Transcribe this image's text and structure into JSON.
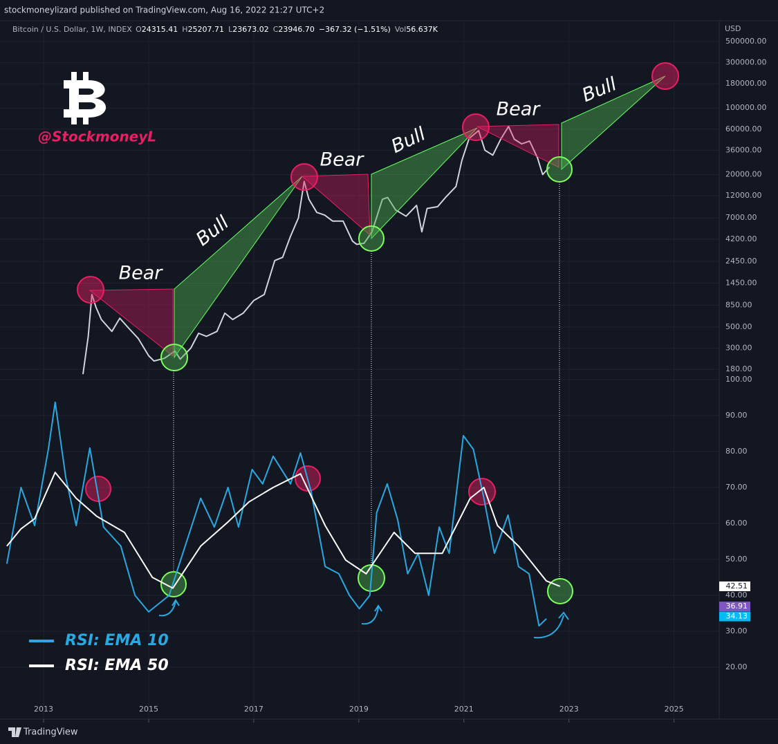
{
  "header": {
    "published": "stockmoneylizard published on TradingView.com, Aug 16, 2022 21:27 UTC+2",
    "symbol": "Bitcoin / U.S. Dollar, 1W, INDEX",
    "ohlc": [
      {
        "key": "O",
        "value": "24315.41"
      },
      {
        "key": "H",
        "value": "25207.71"
      },
      {
        "key": "L",
        "value": "23673.02"
      },
      {
        "key": "C",
        "value": "23946.70"
      }
    ],
    "change": "−367.32 (−1.51%)",
    "volume": {
      "key": "Vol",
      "value": "56.637K"
    },
    "currency": "USD"
  },
  "watermark": "@StockmoneyL",
  "annotations": [
    "Bear",
    "Bull",
    "Bear",
    "Bull",
    "Bear",
    "Bull"
  ],
  "footer": "TradingView",
  "chart_data": [
    {
      "type": "line",
      "log_scale": true,
      "grid": true,
      "xlim": [
        2012.17,
        2025.86
      ],
      "ylim": [
        150,
        826000
      ],
      "yticks": [
        {
          "value": 500000,
          "label": "500000.00"
        },
        {
          "value": 300000,
          "label": "300000.00"
        },
        {
          "value": 180000,
          "label": "180000.00"
        },
        {
          "value": 100000,
          "label": "100000.00"
        },
        {
          "value": 60000,
          "label": "60000.00"
        },
        {
          "value": 36000,
          "label": "36000.00"
        },
        {
          "value": 20000,
          "label": "20000.00"
        },
        {
          "value": 12000,
          "label": "12000.00"
        },
        {
          "value": 7000,
          "label": "7000.00"
        },
        {
          "value": 4200,
          "label": "4200.00"
        },
        {
          "value": 2450,
          "label": "2450.00"
        },
        {
          "value": 1450,
          "label": "1450.00"
        },
        {
          "value": 850,
          "label": "850.00"
        },
        {
          "value": 500,
          "label": "500.00"
        },
        {
          "value": 300,
          "label": "300.00"
        },
        {
          "value": 180,
          "label": "180.00"
        }
      ],
      "series": [
        {
          "color": "#d1d4dc",
          "x": [
            2013.75,
            2013.85,
            2013.92,
            2014.0,
            2014.1,
            2014.3,
            2014.45,
            2014.6,
            2014.8,
            2015.0,
            2015.1,
            2015.3,
            2015.5,
            2015.6,
            2015.8,
            2015.95,
            2016.1,
            2016.3,
            2016.45,
            2016.6,
            2016.8,
            2017.0,
            2017.2,
            2017.4,
            2017.55,
            2017.7,
            2017.85,
            2017.96,
            2018.05,
            2018.2,
            2018.35,
            2018.5,
            2018.7,
            2018.88,
            2018.96,
            2019.1,
            2019.25,
            2019.45,
            2019.55,
            2019.7,
            2019.9,
            2020.1,
            2020.2,
            2020.3,
            2020.5,
            2020.65,
            2020.85,
            2020.96,
            2021.1,
            2021.28,
            2021.4,
            2021.55,
            2021.7,
            2021.85,
            2021.96,
            2022.1,
            2022.25,
            2022.4,
            2022.5,
            2022.63
          ],
          "values": [
            160,
            400,
            1100,
            800,
            600,
            450,
            620,
            500,
            380,
            250,
            220,
            235,
            280,
            230,
            300,
            430,
            400,
            450,
            700,
            600,
            700,
            950,
            1100,
            2500,
            2700,
            4500,
            7000,
            17000,
            11000,
            8000,
            7500,
            6500,
            6500,
            4000,
            3700,
            3800,
            5000,
            11000,
            11500,
            8500,
            7300,
            9500,
            5000,
            8800,
            9200,
            11500,
            15000,
            28000,
            48000,
            58000,
            36000,
            32000,
            47000,
            64000,
            47000,
            42000,
            45000,
            30000,
            20000,
            24000
          ]
        }
      ]
    },
    {
      "type": "line",
      "grid": true,
      "legend": "bottom-left",
      "xlim": [
        2012.17,
        2025.86
      ],
      "ylim": [
        11.35,
        100
      ],
      "xticks": [
        2013,
        2015,
        2017,
        2019,
        2021,
        2023,
        2025
      ],
      "yticks": [
        {
          "value": 100,
          "label": "100.00"
        },
        {
          "value": 90,
          "label": "90.00"
        },
        {
          "value": 80,
          "label": "80.00"
        },
        {
          "value": 70,
          "label": "70.00"
        },
        {
          "value": 60,
          "label": "60.00"
        },
        {
          "value": 50,
          "label": "50.00"
        },
        {
          "value": 40,
          "label": "40.00"
        },
        {
          "value": 30,
          "label": "30.00"
        },
        {
          "value": 20,
          "label": "20.00"
        }
      ],
      "series": [
        {
          "name": "RSI: EMA 10",
          "color": "#29a9e1",
          "x": [
            2012.3,
            2012.57,
            2012.83,
            2013.09,
            2013.22,
            2013.42,
            2013.62,
            2013.88,
            2014.14,
            2014.47,
            2014.74,
            2015.0,
            2015.39,
            2015.59,
            2015.99,
            2016.25,
            2016.51,
            2016.71,
            2016.97,
            2017.17,
            2017.37,
            2017.7,
            2017.89,
            2018.09,
            2018.36,
            2018.62,
            2018.82,
            2019.01,
            2019.21,
            2019.34,
            2019.54,
            2019.74,
            2019.93,
            2020.13,
            2020.33,
            2020.53,
            2020.72,
            2020.99,
            2021.18,
            2021.38,
            2021.58,
            2021.84,
            2022.04,
            2022.24,
            2022.43,
            2022.57
          ],
          "values": [
            48.8,
            70,
            59.4,
            80.6,
            93.7,
            72.9,
            59.4,
            81,
            59,
            53.7,
            40,
            35.4,
            40,
            49,
            67,
            59,
            70,
            59,
            75,
            71,
            78.7,
            71,
            79.6,
            69,
            48,
            46,
            40,
            36.3,
            40,
            63,
            71,
            61,
            46,
            51.7,
            40,
            59,
            51.7,
            84.4,
            80.6,
            67,
            51.7,
            62.3,
            48,
            46,
            31.5,
            33.5
          ]
        },
        {
          "name": "RSI: EMA 50",
          "color": "#ffffff",
          "x": [
            2012.3,
            2012.57,
            2012.83,
            2013.22,
            2013.62,
            2014.01,
            2014.54,
            2015.07,
            2015.46,
            2015.99,
            2016.51,
            2016.91,
            2017.37,
            2017.89,
            2018.36,
            2018.75,
            2019.14,
            2019.67,
            2020.07,
            2020.59,
            2021.12,
            2021.38,
            2021.64,
            2022.04,
            2022.57,
            2022.83
          ],
          "values": [
            53.7,
            58.5,
            61.3,
            74.2,
            67,
            62,
            57.5,
            45,
            42,
            53.7,
            60.4,
            66,
            70,
            73.8,
            59.4,
            49.8,
            46,
            57.5,
            51.7,
            51.7,
            67,
            70,
            59.4,
            53.7,
            44,
            42.5
          ]
        }
      ],
      "last_values": {
        "values": [
          42.51,
          36.91,
          34.13
        ],
        "colors": [
          "#ffffff",
          "#7e57c2",
          "#00bcf2"
        ]
      }
    }
  ]
}
